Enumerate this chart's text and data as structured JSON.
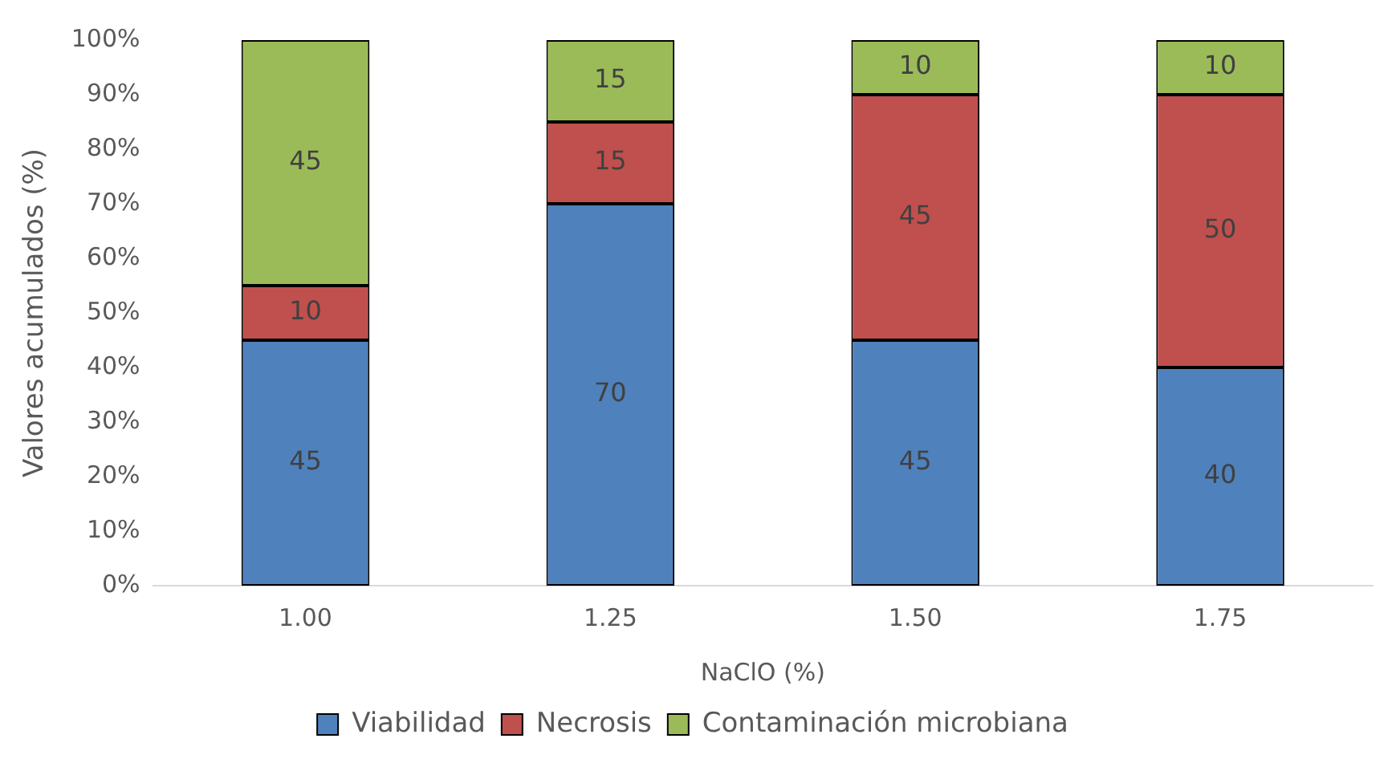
{
  "chart_data": {
    "type": "bar",
    "stacked": true,
    "xlabel": "NaClO (%)",
    "ylabel": "Valores acumulados (%)",
    "categories": [
      "1.00",
      "1.25",
      "1.50",
      "1.75"
    ],
    "series": [
      {
        "name": "Viabilidad",
        "color": "#4f81bd",
        "values": [
          45,
          70,
          45,
          40
        ]
      },
      {
        "name": "Necrosis",
        "color": "#c0504d",
        "values": [
          10,
          15,
          45,
          50
        ]
      },
      {
        "name": "Contaminación microbiana",
        "color": "#9bbb59",
        "values": [
          45,
          15,
          10,
          10
        ]
      }
    ],
    "ylim": [
      0,
      100
    ],
    "yticks": [
      {
        "value": 0,
        "label": "0%"
      },
      {
        "value": 10,
        "label": "10%"
      },
      {
        "value": 20,
        "label": "20%"
      },
      {
        "value": 30,
        "label": "30%"
      },
      {
        "value": 40,
        "label": "40%"
      },
      {
        "value": 50,
        "label": "50%"
      },
      {
        "value": 60,
        "label": "60%"
      },
      {
        "value": 70,
        "label": "70%"
      },
      {
        "value": 80,
        "label": "80%"
      },
      {
        "value": 90,
        "label": "90%"
      },
      {
        "value": 100,
        "label": "100%"
      }
    ],
    "grid": false,
    "legend": "bottom",
    "data_labels": true
  }
}
